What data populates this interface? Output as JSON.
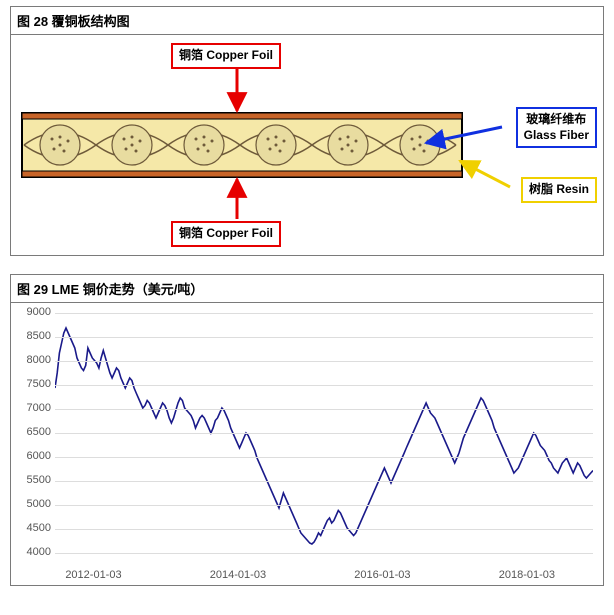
{
  "figure28": {
    "title": "图 28  覆铜板结构图",
    "labels": {
      "copper_top": "铜箔 Copper Foil",
      "copper_bottom": "铜箔 Copper Foil",
      "glass_fiber_cn": "玻璃纤维布",
      "glass_fiber_en": "Glass Fiber",
      "resin": "树脂 Resin"
    },
    "colors": {
      "copper_layer": "#c86428",
      "resin_fill": "#f5e8a8",
      "fiber_outline": "#6e5a3a",
      "fiber_fill": "#e8dca0",
      "arrow_red": "#e60000",
      "arrow_blue": "#1030e0",
      "arrow_yellow": "#f0d000",
      "box_red": "#e60000",
      "box_blue": "#1030e0",
      "box_yellow": "#f0d000",
      "frame": "#000000"
    }
  },
  "figure29": {
    "title": "图 29  LME 铜价走势（美元/吨）",
    "y_axis": {
      "min": 4000,
      "max": 9000,
      "step": 500,
      "ticks": [
        4000,
        4500,
        5000,
        5500,
        6000,
        6500,
        7000,
        7500,
        8000,
        8500,
        9000
      ]
    },
    "x_axis": {
      "labels": [
        "2012-01-03",
        "2014-01-03",
        "2016-01-03",
        "2018-01-03"
      ],
      "positions_pct": [
        2,
        30,
        58,
        86
      ]
    },
    "line_color": "#1a1a8a",
    "line_width": 1.6,
    "grid_color": "#dddddd",
    "bg": "#ffffff",
    "font_size_axis": 11,
    "data": [
      7500,
      7800,
      8200,
      8400,
      8600,
      8700,
      8600,
      8500,
      8400,
      8300,
      8100,
      8000,
      7900,
      7850,
      7950,
      8300,
      8200,
      8100,
      8050,
      8000,
      7900,
      8100,
      8250,
      8100,
      7950,
      7800,
      7700,
      7800,
      7900,
      7850,
      7700,
      7600,
      7500,
      7600,
      7700,
      7650,
      7500,
      7400,
      7300,
      7200,
      7100,
      7150,
      7250,
      7200,
      7100,
      7000,
      6900,
      7000,
      7100,
      7200,
      7150,
      7050,
      6900,
      6800,
      6900,
      7050,
      7200,
      7300,
      7250,
      7100,
      7050,
      7000,
      6950,
      6850,
      6700,
      6800,
      6900,
      6950,
      6900,
      6800,
      6700,
      6600,
      6700,
      6850,
      6900,
      7000,
      7100,
      7050,
      6950,
      6850,
      6700,
      6600,
      6500,
      6400,
      6300,
      6400,
      6500,
      6600,
      6550,
      6450,
      6350,
      6250,
      6100,
      6000,
      5900,
      5800,
      5700,
      5600,
      5500,
      5400,
      5300,
      5200,
      5100,
      5250,
      5400,
      5300,
      5200,
      5100,
      5000,
      4900,
      4800,
      4700,
      4600,
      4550,
      4500,
      4450,
      4400,
      4380,
      4420,
      4500,
      4600,
      4550,
      4650,
      4750,
      4850,
      4900,
      4800,
      4850,
      4950,
      5050,
      5000,
      4900,
      4800,
      4700,
      4650,
      4600,
      4550,
      4600,
      4700,
      4800,
      4900,
      5000,
      5100,
      5200,
      5300,
      5400,
      5500,
      5600,
      5700,
      5800,
      5900,
      5800,
      5700,
      5600,
      5700,
      5800,
      5900,
      6000,
      6100,
      6200,
      6300,
      6400,
      6500,
      6600,
      6700,
      6800,
      6900,
      7000,
      7100,
      7200,
      7100,
      7000,
      6950,
      6900,
      6800,
      6700,
      6600,
      6500,
      6400,
      6300,
      6200,
      6100,
      6000,
      6100,
      6200,
      6350,
      6500,
      6600,
      6700,
      6800,
      6900,
      7000,
      7100,
      7200,
      7300,
      7250,
      7150,
      7050,
      6950,
      6850,
      6700,
      6600,
      6500,
      6400,
      6300,
      6200,
      6100,
      6000,
      5900,
      5800,
      5850,
      5900,
      6000,
      6100,
      6200,
      6300,
      6400,
      6500,
      6600,
      6550,
      6450,
      6350,
      6300,
      6250,
      6150,
      6050,
      6000,
      5900,
      5850,
      5800,
      5900,
      6000,
      6050,
      6100,
      6000,
      5900,
      5800,
      5900,
      6000,
      5950,
      5850,
      5750,
      5700,
      5750,
      5800,
      5850
    ]
  }
}
